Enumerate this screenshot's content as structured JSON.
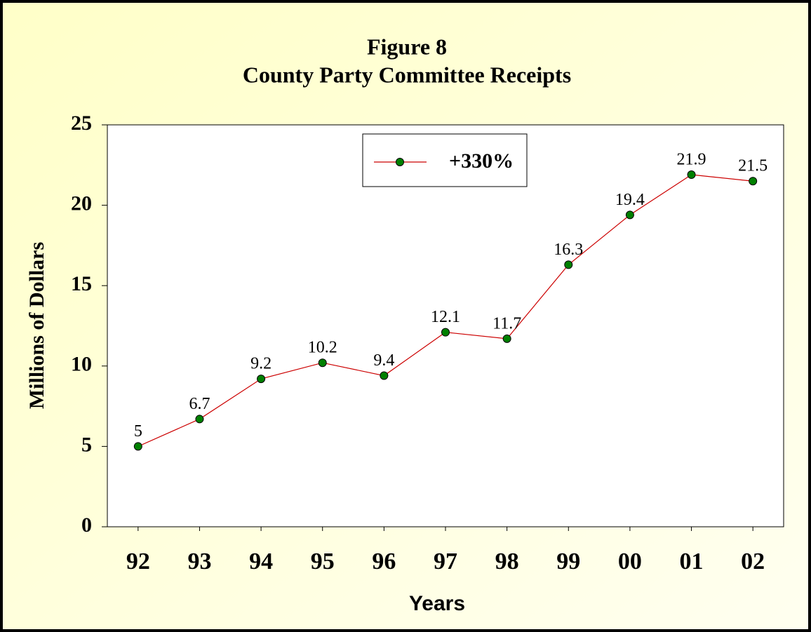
{
  "chart_data": {
    "type": "line",
    "title": "Figure 8",
    "subtitle": "County Party Committee Receipts",
    "x_label": "Years",
    "y_label": "Millions of Dollars",
    "categories": [
      "92",
      "93",
      "94",
      "95",
      "96",
      "97",
      "98",
      "99",
      "00",
      "01",
      "02"
    ],
    "series": [
      {
        "name": "+330%",
        "color": "#cc0000",
        "marker_color": "#008000",
        "values": [
          5,
          6.7,
          9.2,
          10.2,
          9.4,
          12.1,
          11.7,
          16.3,
          19.4,
          21.9,
          21.5
        ]
      }
    ],
    "ylim": [
      0,
      25
    ],
    "yticks": [
      0,
      5,
      10,
      15,
      20,
      25
    ],
    "legend": "top-center"
  }
}
